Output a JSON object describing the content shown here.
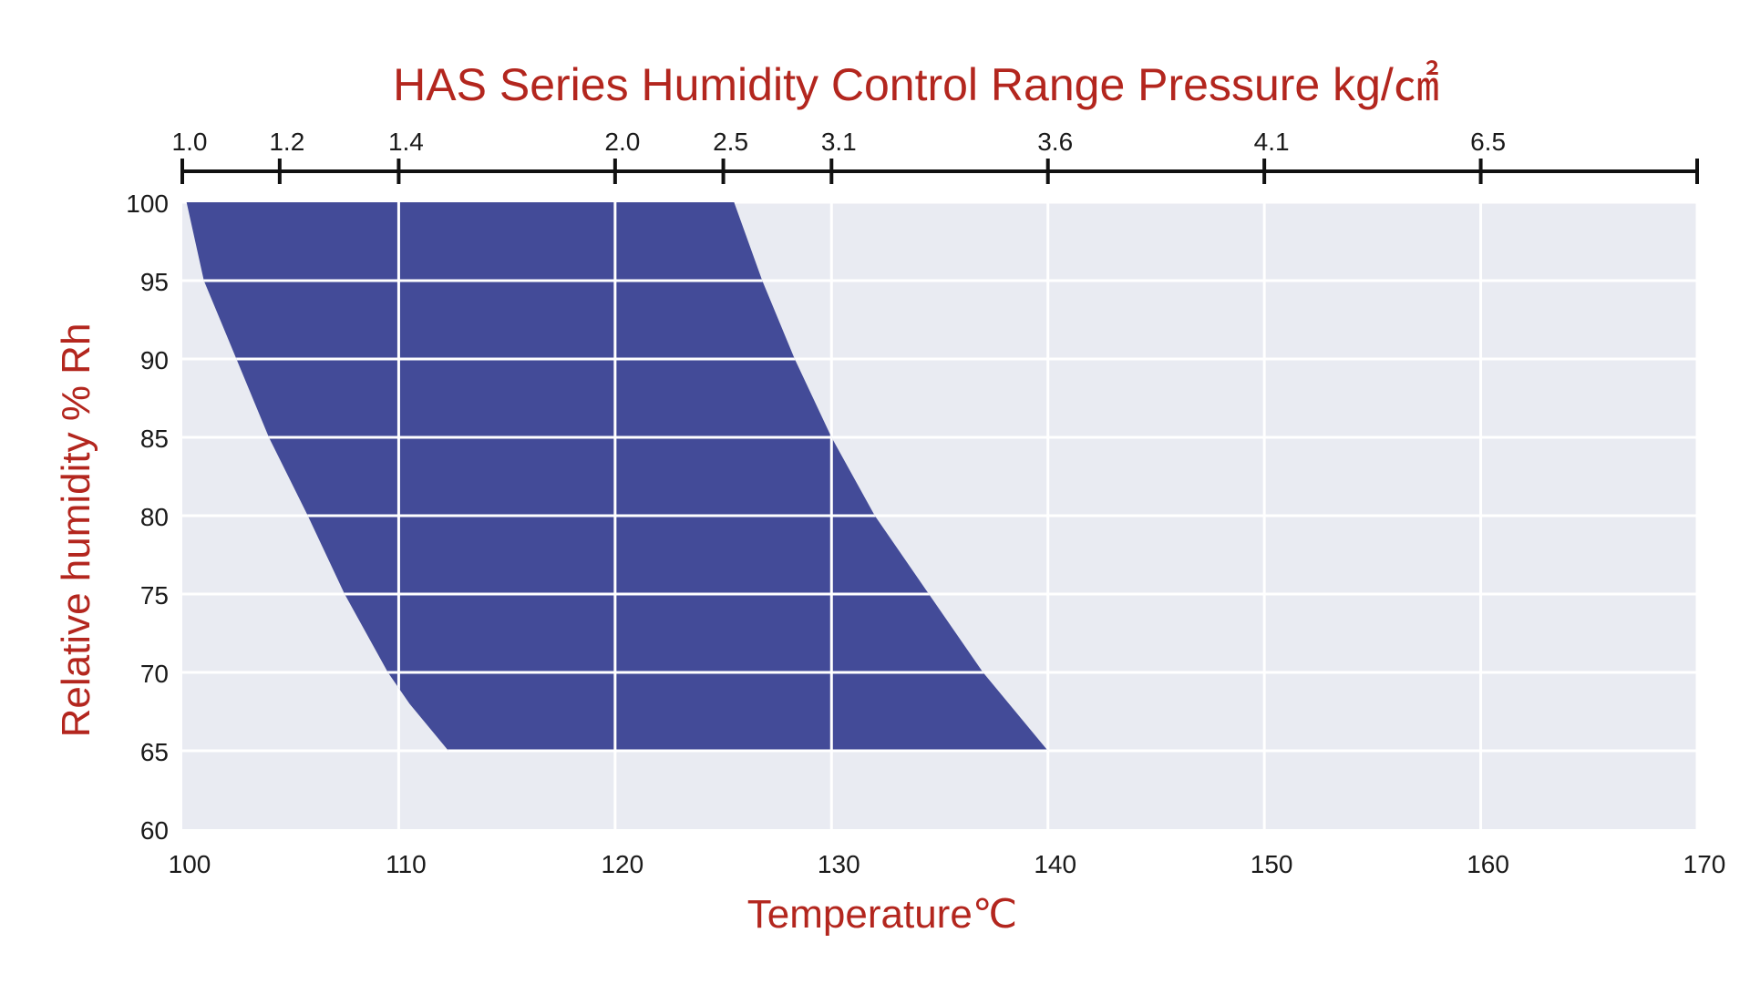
{
  "chart_data": {
    "type": "area",
    "title": "HAS Series Humidity Control Range Pressure kg/㎠",
    "xlabel": "Temperature℃",
    "ylabel": "Relative humidity % Rh",
    "xlim": [
      100,
      170
    ],
    "ylim": [
      60,
      100
    ],
    "x_ticks": [
      100,
      110,
      120,
      130,
      140,
      150,
      160,
      170
    ],
    "y_ticks": [
      {
        "value": 100,
        "label": "100"
      },
      {
        "value": 95,
        "label": "95"
      },
      {
        "value": 90,
        "label": "90"
      },
      {
        "value": 85,
        "label": "85"
      },
      {
        "value": 80,
        "label": "80"
      },
      {
        "value": 75,
        "label": "75"
      },
      {
        "value": 70,
        "label": "70"
      },
      {
        "value": 65,
        "label": "65"
      },
      {
        "value": 60,
        "label": "60"
      }
    ],
    "top_axis_ticks": [
      {
        "temp": 100,
        "label": "1.0"
      },
      {
        "temp": 104.5,
        "label": "1.2"
      },
      {
        "temp": 110,
        "label": "1.4"
      },
      {
        "temp": 120,
        "label": "2.0"
      },
      {
        "temp": 125,
        "label": "2.5"
      },
      {
        "temp": 130,
        "label": "3.1"
      },
      {
        "temp": 140,
        "label": "3.6"
      },
      {
        "temp": 150,
        "label": "4.1"
      },
      {
        "temp": 160,
        "label": "6.5"
      }
    ],
    "region": {
      "left_boundary": [
        [
          100.2,
          100
        ],
        [
          101,
          95
        ],
        [
          102.5,
          90
        ],
        [
          104,
          85
        ],
        [
          105.8,
          80
        ],
        [
          107.5,
          75
        ],
        [
          109.5,
          70
        ],
        [
          110.5,
          68
        ],
        [
          112.3,
          65
        ]
      ],
      "right_boundary": [
        [
          140,
          65
        ],
        [
          137,
          70
        ],
        [
          134.5,
          75
        ],
        [
          132,
          80
        ],
        [
          130,
          85
        ],
        [
          128.3,
          90
        ],
        [
          126.8,
          95
        ],
        [
          125.5,
          100
        ]
      ]
    },
    "grid": true,
    "colors": {
      "region": "#434b98",
      "background": "#e9ebf2",
      "grid": "#ffffff",
      "title": "#b3261e",
      "axis_text": "#1a1a1a"
    }
  }
}
